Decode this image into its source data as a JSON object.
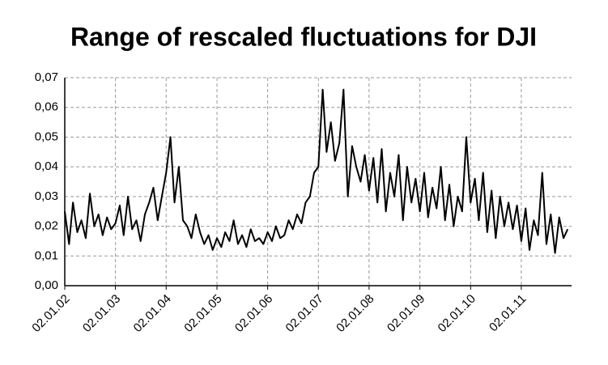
{
  "chart_data": {
    "type": "line",
    "title": "Range of rescaled fluctuations for DJI",
    "grid": true,
    "xlim": [
      "2002-01-02",
      "2011-12-30"
    ],
    "ylim": [
      0,
      0.07
    ],
    "yticks": [
      {
        "value": 0,
        "label": "0,00"
      },
      {
        "value": 0.01,
        "label": "0,01"
      },
      {
        "value": 0.02,
        "label": "0,02"
      },
      {
        "value": 0.03,
        "label": "0,03"
      },
      {
        "value": 0.04,
        "label": "0,04"
      },
      {
        "value": 0.05,
        "label": "0,05"
      },
      {
        "value": 0.06,
        "label": "0,06"
      },
      {
        "value": 0.07,
        "label": "0,07"
      }
    ],
    "xticks": [
      {
        "value": "2002-01-02",
        "label": "02.01.02"
      },
      {
        "value": "2003-01-02",
        "label": "02.01.03"
      },
      {
        "value": "2004-01-02",
        "label": "02.01.04"
      },
      {
        "value": "2005-01-02",
        "label": "02.01.05"
      },
      {
        "value": "2006-01-02",
        "label": "02.01.06"
      },
      {
        "value": "2007-01-02",
        "label": "02.01.07"
      },
      {
        "value": "2008-01-02",
        "label": "02.01.08"
      },
      {
        "value": "2009-01-02",
        "label": "02.01.09"
      },
      {
        "value": "2010-01-02",
        "label": "02.01.10"
      },
      {
        "value": "2011-01-02",
        "label": "02.01.11"
      }
    ],
    "x": [
      "2002-01-02",
      "2002-02-02",
      "2002-03-02",
      "2002-04-02",
      "2002-05-02",
      "2002-06-02",
      "2002-07-02",
      "2002-08-02",
      "2002-09-02",
      "2002-10-02",
      "2002-11-02",
      "2002-12-02",
      "2003-01-02",
      "2003-02-02",
      "2003-03-02",
      "2003-04-02",
      "2003-05-02",
      "2003-06-02",
      "2003-07-02",
      "2003-08-02",
      "2003-09-02",
      "2003-10-02",
      "2003-11-02",
      "2003-12-02",
      "2004-01-02",
      "2004-02-02",
      "2004-03-02",
      "2004-04-02",
      "2004-05-02",
      "2004-06-02",
      "2004-07-02",
      "2004-08-02",
      "2004-09-02",
      "2004-10-02",
      "2004-11-02",
      "2004-12-02",
      "2005-01-02",
      "2005-02-02",
      "2005-03-02",
      "2005-04-02",
      "2005-05-02",
      "2005-06-02",
      "2005-07-02",
      "2005-08-02",
      "2005-09-02",
      "2005-10-02",
      "2005-11-02",
      "2005-12-02",
      "2006-01-02",
      "2006-02-02",
      "2006-03-02",
      "2006-04-02",
      "2006-05-02",
      "2006-06-02",
      "2006-07-02",
      "2006-08-02",
      "2006-09-02",
      "2006-10-02",
      "2006-11-02",
      "2006-12-02",
      "2007-01-02",
      "2007-02-02",
      "2007-03-02",
      "2007-04-02",
      "2007-05-02",
      "2007-06-02",
      "2007-07-02",
      "2007-08-02",
      "2007-09-02",
      "2007-10-02",
      "2007-11-02",
      "2007-12-02",
      "2008-01-02",
      "2008-02-02",
      "2008-03-02",
      "2008-04-02",
      "2008-05-02",
      "2008-06-02",
      "2008-07-02",
      "2008-08-02",
      "2008-09-02",
      "2008-10-02",
      "2008-11-02",
      "2008-12-02",
      "2009-01-02",
      "2009-02-02",
      "2009-03-02",
      "2009-04-02",
      "2009-05-02",
      "2009-06-02",
      "2009-07-02",
      "2009-08-02",
      "2009-09-02",
      "2009-10-02",
      "2009-11-02",
      "2009-12-02",
      "2010-01-02",
      "2010-02-02",
      "2010-03-02",
      "2010-04-02",
      "2010-05-02",
      "2010-06-02",
      "2010-07-02",
      "2010-08-02",
      "2010-09-02",
      "2010-10-02",
      "2010-11-02",
      "2010-12-02",
      "2011-01-02",
      "2011-02-02",
      "2011-03-02",
      "2011-04-02",
      "2011-05-02",
      "2011-06-02",
      "2011-07-02",
      "2011-08-02",
      "2011-09-02",
      "2011-10-02",
      "2011-11-02",
      "2011-12-02"
    ],
    "color": "#000000",
    "values": [
      0.025,
      0.014,
      0.028,
      0.018,
      0.022,
      0.016,
      0.031,
      0.02,
      0.024,
      0.017,
      0.023,
      0.019,
      0.021,
      0.027,
      0.017,
      0.03,
      0.019,
      0.022,
      0.015,
      0.024,
      0.028,
      0.033,
      0.022,
      0.03,
      0.038,
      0.05,
      0.028,
      0.04,
      0.022,
      0.02,
      0.016,
      0.024,
      0.018,
      0.014,
      0.017,
      0.012,
      0.016,
      0.013,
      0.018,
      0.015,
      0.022,
      0.014,
      0.017,
      0.013,
      0.019,
      0.015,
      0.016,
      0.014,
      0.018,
      0.015,
      0.02,
      0.016,
      0.017,
      0.022,
      0.019,
      0.024,
      0.021,
      0.028,
      0.03,
      0.038,
      0.04,
      0.066,
      0.045,
      0.055,
      0.042,
      0.048,
      0.066,
      0.03,
      0.047,
      0.04,
      0.035,
      0.044,
      0.032,
      0.043,
      0.028,
      0.046,
      0.025,
      0.038,
      0.03,
      0.044,
      0.022,
      0.04,
      0.028,
      0.036,
      0.025,
      0.038,
      0.023,
      0.033,
      0.026,
      0.04,
      0.022,
      0.034,
      0.02,
      0.03,
      0.025,
      0.05,
      0.028,
      0.036,
      0.022,
      0.038,
      0.018,
      0.032,
      0.016,
      0.03,
      0.02,
      0.028,
      0.019,
      0.027,
      0.015,
      0.026,
      0.012,
      0.022,
      0.017,
      0.038,
      0.014,
      0.024,
      0.011,
      0.023,
      0.016,
      0.019
    ]
  }
}
